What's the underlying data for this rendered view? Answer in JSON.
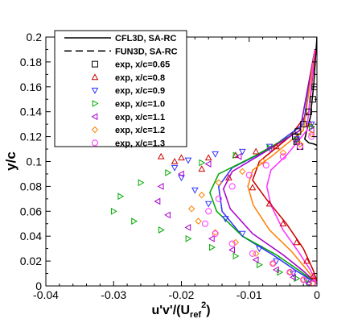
{
  "chart_data": {
    "type": "line",
    "title": "",
    "xlabel": {
      "main": "u'v'/(U",
      "sub": "ref",
      "sup": "2",
      "close": ")"
    },
    "ylabel": "y/c",
    "xlim": [
      -0.04,
      0
    ],
    "ylim": [
      0,
      0.2
    ],
    "xticks": [
      -0.04,
      -0.03,
      -0.02,
      -0.01,
      0
    ],
    "xtick_labels": [
      "-0.04",
      "-0.03",
      "-0.02",
      "-0.01",
      "0"
    ],
    "yticks": [
      0,
      0.02,
      0.04,
      0.06,
      0.08,
      0.1,
      0.12,
      0.14,
      0.16,
      0.18,
      0.2
    ],
    "ytick_labels": [
      "0",
      "0.02",
      "0.04",
      "0.06",
      "0.08",
      "0.1",
      "0.12",
      "0.14",
      "0.16",
      "0.18",
      "0.2"
    ],
    "grid": false,
    "legend_position": "top-left",
    "legend": [
      {
        "label": "CFL3D, SA-RC",
        "kind": "line",
        "dash": "solid",
        "color": "#000000"
      },
      {
        "label": "FUN3D, SA-RC",
        "kind": "line",
        "dash": "dashed",
        "color": "#000000"
      },
      {
        "label": "exp, x/c=0.65",
        "kind": "marker",
        "marker": "square",
        "color": "#000000"
      },
      {
        "label": "exp, x/c=0.8",
        "kind": "marker",
        "marker": "triangle-up",
        "color": "#cc0000"
      },
      {
        "label": "exp, x/c=0.9",
        "kind": "marker",
        "marker": "triangle-down",
        "color": "#3333ff"
      },
      {
        "label": "exp, x/c=1.0",
        "kind": "marker",
        "marker": "triangle-right",
        "color": "#00aa00"
      },
      {
        "label": "exp, x/c=1.1",
        "kind": "marker",
        "marker": "triangle-left",
        "color": "#aa00cc"
      },
      {
        "label": "exp, x/c=1.2",
        "kind": "marker",
        "marker": "diamond",
        "color": "#ff8000"
      },
      {
        "label": "exp, x/c=1.3",
        "kind": "marker",
        "marker": "circle",
        "color": "#ff33ff"
      }
    ],
    "cfd_series": [
      {
        "station": "0.65",
        "color": "#000000",
        "x": [
          0,
          -0.0005,
          -0.001,
          -0.0015,
          -0.0018,
          -0.0012,
          -0.0004,
          0
        ],
        "y": [
          0.2,
          0.16,
          0.135,
          0.125,
          0.118,
          0.115,
          0.114,
          0.113
        ]
      },
      {
        "station": "0.8",
        "color": "#cc0000",
        "x": [
          -0.0002,
          -0.0012,
          -0.004,
          -0.0085,
          -0.0095,
          -0.0075,
          -0.0045,
          -0.002,
          -0.0005,
          0
        ],
        "y": [
          0.19,
          0.14,
          0.12,
          0.1,
          0.085,
          0.07,
          0.05,
          0.03,
          0.012,
          0.002
        ]
      },
      {
        "station": "0.9",
        "color": "#3333ff",
        "x": [
          -0.0003,
          -0.002,
          -0.007,
          -0.0125,
          -0.0145,
          -0.014,
          -0.011,
          -0.0065,
          -0.003,
          0
        ],
        "y": [
          0.19,
          0.13,
          0.11,
          0.095,
          0.08,
          0.06,
          0.04,
          0.025,
          0.012,
          0.002
        ]
      },
      {
        "station": "1.0",
        "color": "#00aa00",
        "x": [
          -0.0003,
          -0.0025,
          -0.009,
          -0.0145,
          -0.0158,
          -0.0148,
          -0.011,
          -0.006,
          -0.0025,
          0
        ],
        "y": [
          0.19,
          0.125,
          0.105,
          0.09,
          0.075,
          0.06,
          0.04,
          0.025,
          0.012,
          0.002
        ]
      },
      {
        "station": "1.1",
        "color": "#aa00cc",
        "x": [
          -0.0003,
          -0.0025,
          -0.0085,
          -0.0125,
          -0.0138,
          -0.0128,
          -0.0095,
          -0.005,
          -0.002,
          0
        ],
        "y": [
          0.19,
          0.125,
          0.105,
          0.092,
          0.078,
          0.062,
          0.042,
          0.025,
          0.012,
          0.002
        ]
      },
      {
        "station": "1.2",
        "color": "#ff8000",
        "x": [
          -0.0003,
          -0.002,
          -0.0065,
          -0.0095,
          -0.0102,
          -0.0094,
          -0.007,
          -0.0038,
          -0.0015,
          0
        ],
        "y": [
          0.19,
          0.125,
          0.105,
          0.093,
          0.08,
          0.065,
          0.045,
          0.028,
          0.013,
          0.002
        ]
      },
      {
        "station": "1.3",
        "color": "#ff33ff",
        "x": [
          -0.0003,
          -0.0015,
          -0.0045,
          -0.0068,
          -0.0074,
          -0.0068,
          -0.005,
          -0.0028,
          -0.001,
          0
        ],
        "y": [
          0.19,
          0.125,
          0.105,
          0.093,
          0.08,
          0.065,
          0.045,
          0.028,
          0.013,
          0.002
        ]
      }
    ],
    "exp_series": [
      {
        "label": "exp, x/c=0.65",
        "marker": "square",
        "color": "#000000",
        "x": [
          -0.0025,
          -0.003,
          -0.0032,
          -0.0028,
          -0.002,
          -0.0012,
          -0.0006,
          -0.0003
        ],
        "y": [
          0.112,
          0.116,
          0.12,
          0.124,
          0.13,
          0.14,
          0.15,
          0.16
        ]
      },
      {
        "label": "exp, x/c=0.8",
        "marker": "triangle-up",
        "color": "#cc0000",
        "x": [
          -0.001,
          -0.003,
          -0.006,
          -0.009,
          -0.012,
          -0.016,
          -0.02,
          -0.023,
          -0.021,
          -0.017,
          -0.013,
          -0.0095,
          -0.007,
          -0.005,
          -0.003,
          -0.0015,
          -0.0005
        ],
        "y": [
          0.13,
          0.118,
          0.112,
          0.108,
          0.105,
          0.103,
          0.103,
          0.104,
          0.1,
          0.094,
          0.087,
          0.079,
          0.066,
          0.05,
          0.035,
          0.02,
          0.008
        ]
      },
      {
        "label": "exp, x/c=0.9",
        "marker": "triangle-down",
        "color": "#3333ff",
        "x": [
          -0.0008,
          -0.003,
          -0.007,
          -0.011,
          -0.015,
          -0.019,
          -0.021,
          -0.02,
          -0.018,
          -0.016,
          -0.0135,
          -0.011,
          -0.0085,
          -0.006,
          -0.0035,
          -0.0015
        ],
        "y": [
          0.13,
          0.118,
          0.112,
          0.108,
          0.106,
          0.101,
          0.095,
          0.087,
          0.077,
          0.066,
          0.054,
          0.042,
          0.03,
          0.02,
          0.01,
          0.004
        ]
      },
      {
        "label": "exp, x/c=1.0",
        "marker": "triangle-right",
        "color": "#00aa00",
        "x": [
          -0.0008,
          -0.003,
          -0.007,
          -0.012,
          -0.017,
          -0.022,
          -0.026,
          -0.029,
          -0.03,
          -0.027,
          -0.023,
          -0.019,
          -0.0155,
          -0.012,
          -0.0085,
          -0.0055,
          -0.003,
          -0.0012
        ],
        "y": [
          0.128,
          0.117,
          0.111,
          0.105,
          0.099,
          0.091,
          0.083,
          0.072,
          0.06,
          0.052,
          0.045,
          0.038,
          0.031,
          0.024,
          0.017,
          0.011,
          0.006,
          0.002
        ]
      },
      {
        "label": "exp, x/c=1.1",
        "marker": "triangle-left",
        "color": "#aa00cc",
        "x": [
          -0.0008,
          -0.003,
          -0.007,
          -0.0115,
          -0.016,
          -0.02,
          -0.023,
          -0.0235,
          -0.022,
          -0.019,
          -0.0155,
          -0.0125,
          -0.009,
          -0.006,
          -0.0035,
          -0.0012
        ],
        "y": [
          0.125,
          0.116,
          0.11,
          0.104,
          0.098,
          0.09,
          0.08,
          0.068,
          0.057,
          0.047,
          0.038,
          0.029,
          0.021,
          0.013,
          0.007,
          0.002
        ]
      },
      {
        "label": "exp, x/c=1.2",
        "marker": "diamond",
        "color": "#ff8000",
        "x": [
          -0.0008,
          -0.0025,
          -0.005,
          -0.008,
          -0.011,
          -0.0145,
          -0.017,
          -0.0185,
          -0.0175,
          -0.015,
          -0.012,
          -0.009,
          -0.0065,
          -0.004,
          -0.002,
          -0.0006
        ],
        "y": [
          0.122,
          0.114,
          0.107,
          0.1,
          0.092,
          0.083,
          0.073,
          0.062,
          0.052,
          0.043,
          0.035,
          0.026,
          0.018,
          0.011,
          0.005,
          0.002
        ]
      },
      {
        "label": "exp, x/c=1.3",
        "marker": "circle",
        "color": "#ff33ff",
        "x": [
          -0.0008,
          -0.0025,
          -0.005,
          -0.0075,
          -0.01,
          -0.0125,
          -0.0145,
          -0.016,
          -0.0165,
          -0.015,
          -0.0125,
          -0.0095,
          -0.0065,
          -0.004,
          -0.002,
          -0.0006
        ],
        "y": [
          0.12,
          0.112,
          0.104,
          0.097,
          0.089,
          0.08,
          0.07,
          0.06,
          0.05,
          0.042,
          0.034,
          0.026,
          0.018,
          0.011,
          0.005,
          0.002
        ]
      }
    ]
  }
}
